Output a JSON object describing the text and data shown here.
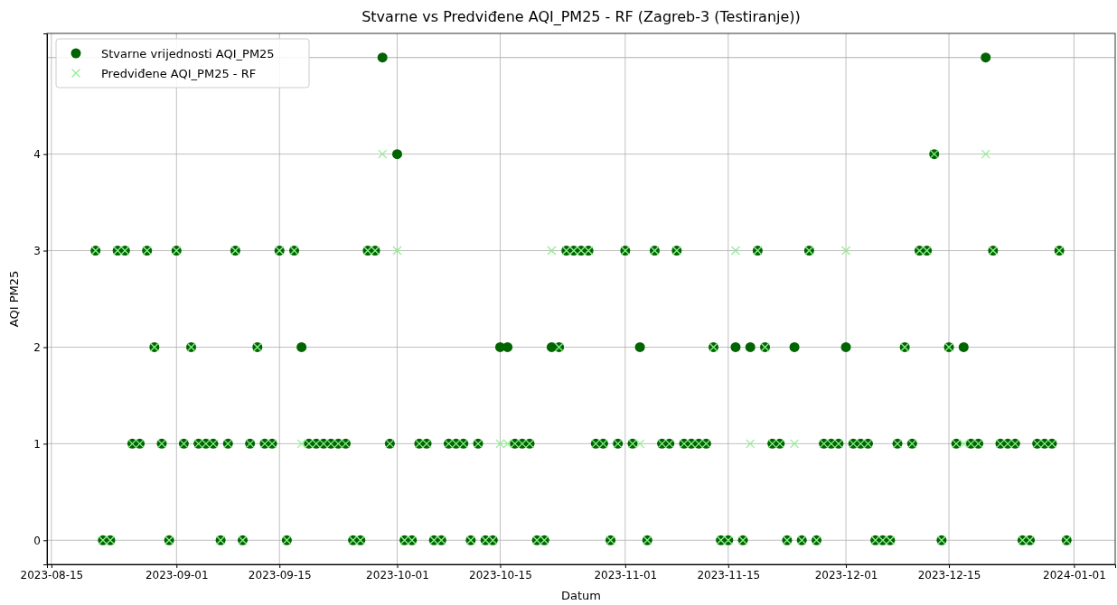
{
  "chart_data": {
    "type": "scatter",
    "title": "Stvarne vs Predviđene AQI_PM25 - RF (Zagreb-3 (Testiranje))",
    "xlabel": "Datum",
    "ylabel": "AQI PM25",
    "x": [
      "2023-08-21",
      "2023-08-22",
      "2023-08-23",
      "2023-08-24",
      "2023-08-25",
      "2023-08-26",
      "2023-08-27",
      "2023-08-28",
      "2023-08-29",
      "2023-08-30",
      "2023-08-31",
      "2023-09-01",
      "2023-09-02",
      "2023-09-03",
      "2023-09-04",
      "2023-09-05",
      "2023-09-06",
      "2023-09-07",
      "2023-09-08",
      "2023-09-09",
      "2023-09-10",
      "2023-09-11",
      "2023-09-12",
      "2023-09-13",
      "2023-09-14",
      "2023-09-15",
      "2023-09-16",
      "2023-09-17",
      "2023-09-18",
      "2023-09-19",
      "2023-09-20",
      "2023-09-21",
      "2023-09-22",
      "2023-09-23",
      "2023-09-24",
      "2023-09-25",
      "2023-09-26",
      "2023-09-27",
      "2023-09-28",
      "2023-09-29",
      "2023-09-30",
      "2023-10-01",
      "2023-10-02",
      "2023-10-03",
      "2023-10-04",
      "2023-10-05",
      "2023-10-06",
      "2023-10-07",
      "2023-10-08",
      "2023-10-09",
      "2023-10-10",
      "2023-10-11",
      "2023-10-12",
      "2023-10-13",
      "2023-10-14",
      "2023-10-15",
      "2023-10-16",
      "2023-10-17",
      "2023-10-18",
      "2023-10-19",
      "2023-10-20",
      "2023-10-21",
      "2023-10-22",
      "2023-10-23",
      "2023-10-24",
      "2023-10-25",
      "2023-10-26",
      "2023-10-27",
      "2023-10-28",
      "2023-10-29",
      "2023-10-30",
      "2023-10-31",
      "2023-11-01",
      "2023-11-02",
      "2023-11-03",
      "2023-11-04",
      "2023-11-05",
      "2023-11-06",
      "2023-11-07",
      "2023-11-08",
      "2023-11-09",
      "2023-11-10",
      "2023-11-11",
      "2023-11-12",
      "2023-11-13",
      "2023-11-14",
      "2023-11-15",
      "2023-11-16",
      "2023-11-17",
      "2023-11-18",
      "2023-11-19",
      "2023-11-20",
      "2023-11-21",
      "2023-11-22",
      "2023-11-23",
      "2023-11-24",
      "2023-11-25",
      "2023-11-26",
      "2023-11-27",
      "2023-11-28",
      "2023-11-29",
      "2023-11-30",
      "2023-12-01",
      "2023-12-02",
      "2023-12-03",
      "2023-12-04",
      "2023-12-05",
      "2023-12-06",
      "2023-12-07",
      "2023-12-08",
      "2023-12-09",
      "2023-12-10",
      "2023-12-11",
      "2023-12-12",
      "2023-12-13",
      "2023-12-14",
      "2023-12-15",
      "2023-12-16",
      "2023-12-17",
      "2023-12-18",
      "2023-12-19",
      "2023-12-20",
      "2023-12-21",
      "2023-12-22",
      "2023-12-23",
      "2023-12-24",
      "2023-12-25",
      "2023-12-26",
      "2023-12-27",
      "2023-12-28",
      "2023-12-29",
      "2023-12-30",
      "2023-12-31"
    ],
    "series": [
      {
        "name": "Stvarne vrijednosti AQI_PM25",
        "color": "#006400",
        "marker": "circle",
        "values": [
          3,
          0,
          0,
          3,
          3,
          1,
          1,
          3,
          2,
          1,
          0,
          3,
          1,
          2,
          1,
          1,
          1,
          0,
          1,
          3,
          0,
          1,
          2,
          1,
          1,
          3,
          0,
          3,
          2,
          1,
          1,
          1,
          1,
          1,
          1,
          0,
          0,
          3,
          3,
          5,
          1,
          4,
          0,
          0,
          1,
          1,
          0,
          0,
          1,
          1,
          1,
          0,
          1,
          0,
          0,
          2,
          2,
          1,
          1,
          1,
          0,
          0,
          2,
          2,
          3,
          3,
          3,
          3,
          1,
          1,
          0,
          1,
          3,
          1,
          2,
          0,
          3,
          1,
          1,
          3,
          1,
          1,
          1,
          1,
          2,
          0,
          0,
          2,
          0,
          2,
          3,
          2,
          1,
          1,
          0,
          2,
          0,
          3,
          0,
          1,
          1,
          1,
          2,
          1,
          1,
          1,
          0,
          0,
          0,
          1,
          2,
          1,
          3,
          3,
          4,
          0,
          2,
          1,
          2,
          1,
          1,
          5,
          3,
          1,
          1,
          1,
          0,
          0,
          1,
          1,
          1,
          3,
          0
        ]
      },
      {
        "name": "Predviđene AQI_PM25 - RF",
        "color": "#90ee90",
        "marker": "cross",
        "values": [
          3,
          0,
          0,
          3,
          3,
          1,
          1,
          3,
          2,
          1,
          0,
          3,
          1,
          2,
          1,
          1,
          1,
          0,
          1,
          3,
          0,
          1,
          2,
          1,
          1,
          3,
          0,
          3,
          1,
          1,
          1,
          1,
          1,
          1,
          1,
          0,
          0,
          3,
          3,
          4,
          1,
          3,
          0,
          0,
          1,
          1,
          0,
          0,
          1,
          1,
          1,
          0,
          1,
          0,
          0,
          1,
          1,
          1,
          1,
          1,
          0,
          0,
          3,
          2,
          3,
          3,
          3,
          3,
          1,
          1,
          0,
          1,
          3,
          1,
          1,
          0,
          3,
          1,
          1,
          3,
          1,
          1,
          1,
          1,
          2,
          0,
          0,
          3,
          0,
          1,
          3,
          2,
          1,
          1,
          0,
          1,
          0,
          3,
          0,
          1,
          1,
          1,
          3,
          1,
          1,
          1,
          0,
          0,
          0,
          1,
          2,
          1,
          3,
          3,
          4,
          0,
          2,
          1,
          1,
          1,
          1,
          4,
          3,
          1,
          1,
          1,
          0,
          0,
          1,
          1,
          1,
          3,
          0
        ]
      }
    ],
    "xlim": [
      "2023-08-14T09:36",
      "2024-01-06T14:24"
    ],
    "xticks": [
      "2023-08-15",
      "2023-09-01",
      "2023-09-15",
      "2023-10-01",
      "2023-10-15",
      "2023-11-01",
      "2023-11-15",
      "2023-12-01",
      "2023-12-15",
      "2024-01-01"
    ],
    "ylim": [
      -0.25,
      5.25
    ],
    "yticks": [
      0,
      1,
      2,
      3,
      4
    ],
    "ref_lines": [
      {
        "axis": "y",
        "value": 5,
        "color": "#b0b0b0"
      }
    ],
    "grid": true,
    "legend": "top left"
  }
}
